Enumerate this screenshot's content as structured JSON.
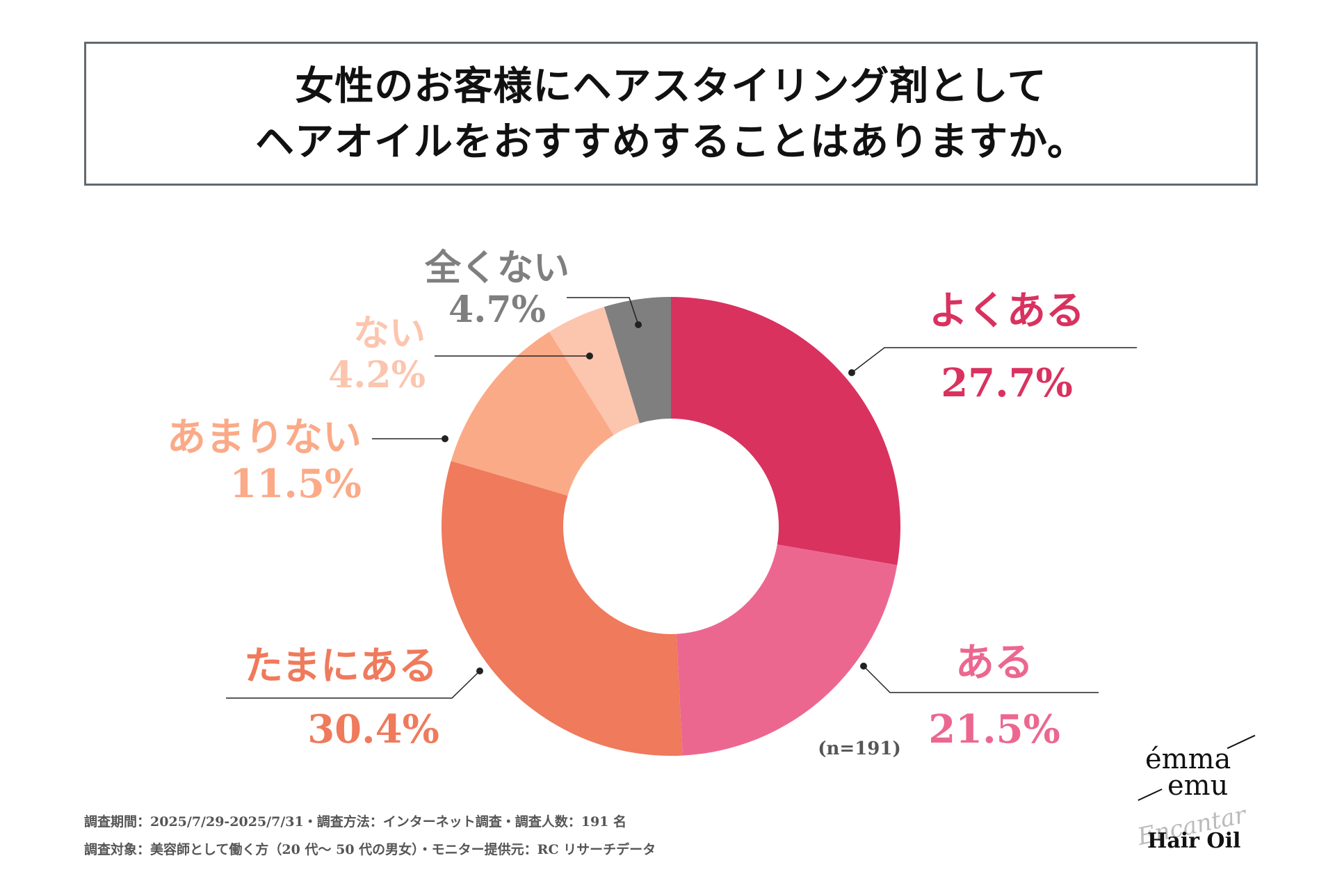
{
  "title": {
    "line1": "女性のお客様にヘアスタイリング剤として",
    "line2": "ヘアオイルをおすすめすることはありますか。"
  },
  "chart_data": {
    "type": "pie",
    "variant": "donut",
    "categories": [
      "よくある",
      "ある",
      "たまにある",
      "あまりない",
      "ない",
      "全くない"
    ],
    "values": [
      27.7,
      21.5,
      30.4,
      11.5,
      4.2,
      4.7
    ],
    "value_labels": [
      "27.7%",
      "21.5%",
      "30.4%",
      "11.5%",
      "4.2%",
      "4.7%"
    ],
    "colors": [
      "#d9325f",
      "#ec6790",
      "#ef7a5c",
      "#fbaa88",
      "#fcc5ae",
      "#7f7f7f"
    ],
    "start": "12 o'clock, clockwise",
    "sample_note": "(n=191)"
  },
  "footnote": {
    "line1": "調査期間：2025/7/29-2025/7/31・調査方法：インターネット調査・調査人数：191 名",
    "line2": "調査対象：美容師として働く方（20 代〜 50 代の男女）・モニター提供元：RC リサーチデータ"
  },
  "logo": {
    "brand_line1": "émma",
    "brand_line2": "emu",
    "script": "Encantar",
    "product": "Hair Oil"
  }
}
